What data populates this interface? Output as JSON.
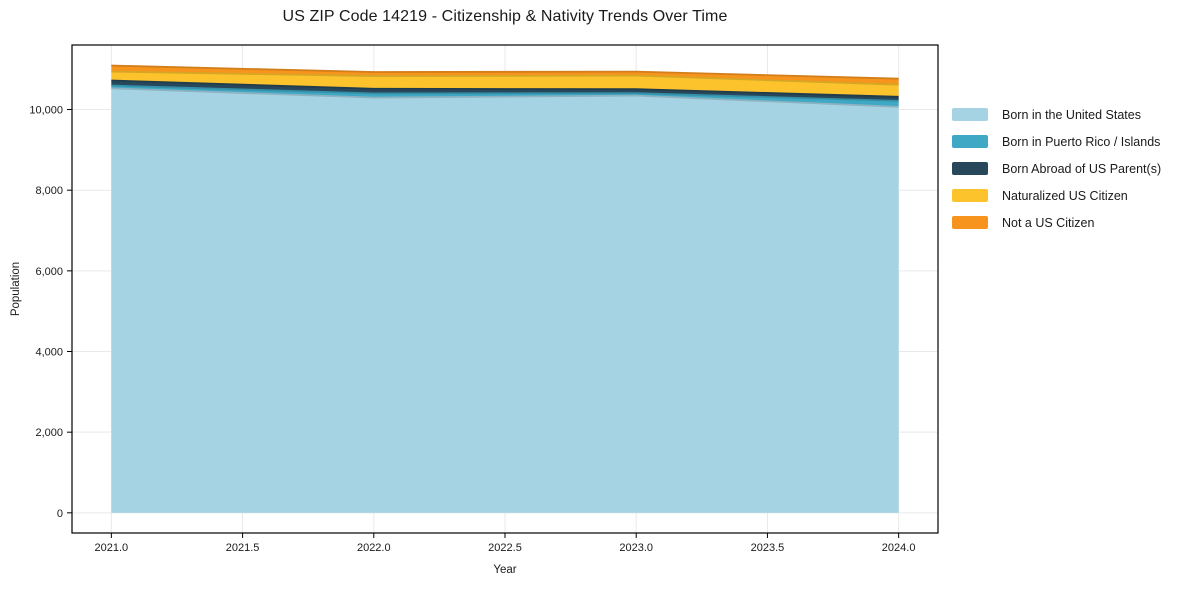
{
  "chart_data": {
    "type": "area",
    "stacked": true,
    "title": "US ZIP Code 14219 - Citizenship & Nativity Trends Over Time",
    "xlabel": "Year",
    "ylabel": "Population",
    "x": [
      2021,
      2022,
      2023,
      2024
    ],
    "series": [
      {
        "name": "Born in the United States",
        "color": "#A6D3E3",
        "values": [
          10525,
          10295,
          10345,
          10065
        ]
      },
      {
        "name": "Born in Puerto Rico / Islands",
        "color": "#3FA8C4",
        "values": [
          70,
          105,
          60,
          150
        ]
      },
      {
        "name": "Born Abroad of US Parent(s)",
        "color": "#27475A",
        "values": [
          125,
          115,
          100,
          100
        ]
      },
      {
        "name": "Naturalized US Citizen",
        "color": "#FCC32C",
        "values": [
          220,
          315,
          335,
          300
        ]
      },
      {
        "name": "Not a US Citizen",
        "color": "#F7941E",
        "values": [
          150,
          100,
          100,
          150
        ]
      }
    ],
    "totals": [
      11090,
      10930,
      10940,
      10765
    ],
    "xlim": [
      2020.85,
      2024.15
    ],
    "ylim": [
      -500,
      11600
    ],
    "xticks": {
      "values": [
        2021.0,
        2021.5,
        2022.0,
        2022.5,
        2023.0,
        2023.5,
        2024.0
      ],
      "labels": [
        "2021.0",
        "2021.5",
        "2022.0",
        "2022.5",
        "2023.0",
        "2023.5",
        "2024.0"
      ]
    },
    "yticks": {
      "values": [
        0,
        2000,
        4000,
        6000,
        8000,
        10000
      ],
      "labels": [
        "0",
        "2,000",
        "4,000",
        "6,000",
        "8,000",
        "10,000"
      ]
    },
    "grid": true,
    "legend_position": "right",
    "background_color": "#ffffff",
    "spine_color": "#000000",
    "grid_color": "#e9e9e9",
    "text_color": "#1a1a1a"
  }
}
